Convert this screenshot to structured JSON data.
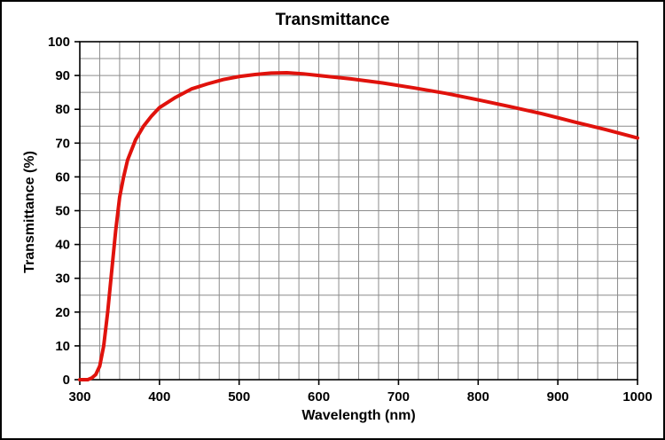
{
  "chart_data": {
    "type": "line",
    "title": "Transmittance",
    "xlabel": "Wavelength (nm)",
    "ylabel": "Transmittance (%)",
    "xlim": [
      300,
      1000
    ],
    "ylim": [
      0,
      100
    ],
    "x_major_ticks": [
      300,
      400,
      500,
      600,
      700,
      800,
      900,
      1000
    ],
    "y_major_ticks": [
      0,
      10,
      20,
      30,
      40,
      50,
      60,
      70,
      80,
      90,
      100
    ],
    "x_minor_step": 25,
    "y_minor_step": 5,
    "grid": true,
    "legend": "none",
    "line_color": "#e0120c",
    "grid_color": "#8c8c8c",
    "axis_color": "#000000",
    "series": [
      {
        "name": "Transmittance",
        "x": [
          300,
          305,
          310,
          315,
          320,
          325,
          330,
          335,
          340,
          345,
          350,
          355,
          360,
          370,
          380,
          390,
          400,
          420,
          440,
          460,
          480,
          500,
          520,
          540,
          560,
          580,
          600,
          640,
          680,
          720,
          760,
          800,
          840,
          880,
          920,
          960,
          1000
        ],
        "y": [
          0,
          0,
          0,
          0.5,
          1.5,
          4,
          10,
          20,
          32,
          44,
          54,
          60,
          65,
          71,
          75,
          78,
          80.5,
          83.5,
          86,
          87.5,
          88.8,
          89.7,
          90.3,
          90.7,
          90.8,
          90.5,
          90,
          89,
          87.8,
          86.3,
          84.7,
          82.8,
          80.8,
          78.7,
          76.3,
          74,
          71.5
        ]
      }
    ]
  }
}
